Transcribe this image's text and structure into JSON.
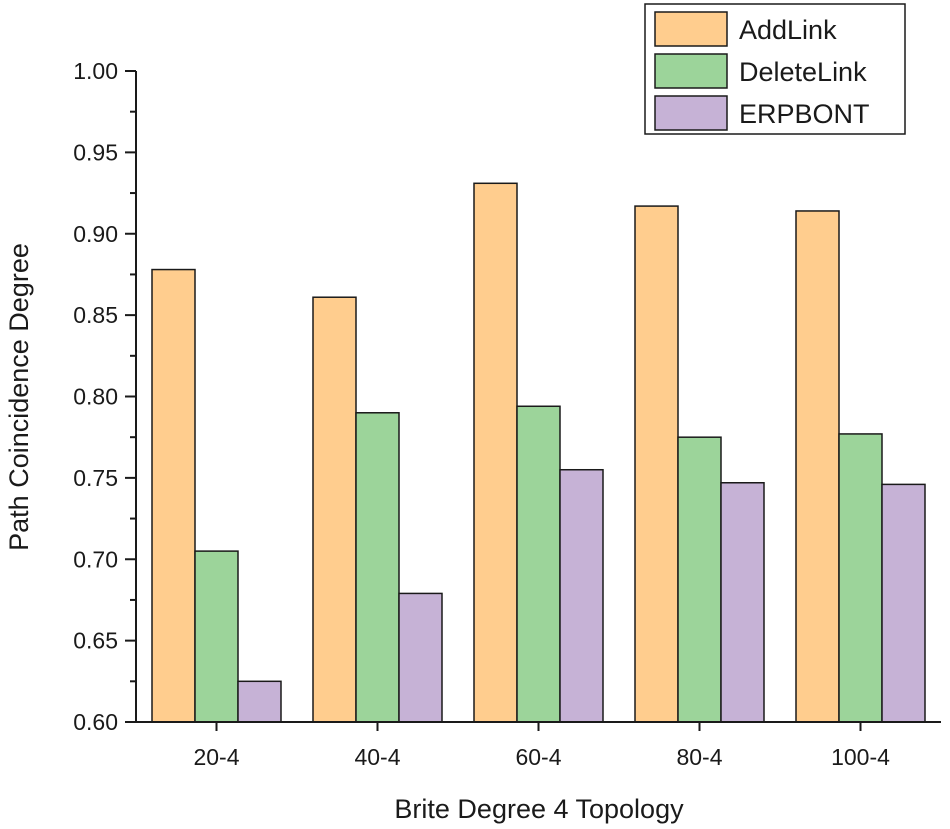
{
  "chart_data": {
    "type": "bar",
    "title": "",
    "xlabel": "Brite Degree 4 Topology",
    "ylabel": "Path Coincidence Degree",
    "categories": [
      "20-4",
      "40-4",
      "60-4",
      "80-4",
      "100-4"
    ],
    "ylim": [
      0.6,
      1.0
    ],
    "yticks": [
      "0.60",
      "0.65",
      "0.70",
      "0.75",
      "0.80",
      "0.85",
      "0.90",
      "0.95",
      "1.00"
    ],
    "grid": false,
    "legend_position": "top-right",
    "series": [
      {
        "name": "AddLink",
        "color": "#FFCD8E",
        "values": [
          0.878,
          0.861,
          0.931,
          0.917,
          0.914
        ]
      },
      {
        "name": "DeleteLink",
        "color": "#9CD49A",
        "values": [
          0.705,
          0.79,
          0.794,
          0.775,
          0.777
        ]
      },
      {
        "name": "ERPBONT",
        "color": "#C6B2D6",
        "values": [
          0.625,
          0.679,
          0.755,
          0.747,
          0.746
        ]
      }
    ]
  }
}
